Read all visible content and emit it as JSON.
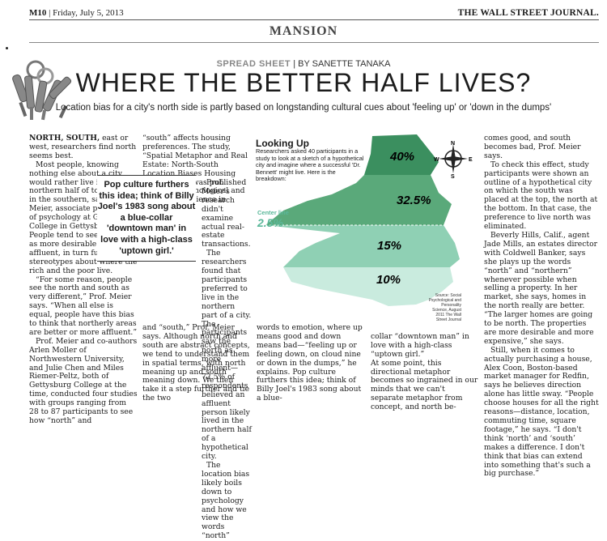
{
  "masthead": {
    "page": "M10",
    "date": "| Friday, July 5, 2013",
    "paper": "THE WALL STREET JOURNAL."
  },
  "section": "MANSION",
  "kicker": {
    "label": "SPREAD SHEET",
    "byline": "| BY SANETTE TANAKA"
  },
  "headline": "WHERE THE BETTER HALF LIVES?",
  "dek": "Location bias for a city's north side is partly based on longstanding cultural cues about 'feeling up' or 'down in the dumps'",
  "pull_quote": "Pop culture furthers this idea; think of Billy Joel's 1983 song about a blue-collar 'downtown man' in love with a high-class 'uptown girl.'",
  "columns": {
    "col1": [
      {
        "lead": "NORTH, SOUTH,",
        "text": " east or west, researchers find north seems best."
      },
      {
        "lead": "",
        "text": "Most people, knowing nothing else about a city, would rather live in the northern half of town than in the southern, says Brian Meier, associate professor of psychology at Gettysburg College in Gettysburg, Pa. People tend to see the north as more desirable and affluent, in turn fueling stereotypes about where the rich and the poor live."
      },
      {
        "lead": "",
        "text": "“For some reason, people see the north and south as very different,” Prof. Meier says. “When all else is equal, people have this bias to think that northerly areas are better or more affluent.”"
      },
      {
        "lead": "",
        "text": "Prof. Meier and co-authors Arlen Moller of Northwestern University, and Julie Chen and Miles Riemer-Peltz, both of Gettysburg College at the time, conducted four studies with groups ranging from 28 to 87 participants to see how “north” and"
      }
    ],
    "col2_top": "“south” affects housing preferences. The study, “Spatial Metaphor and Real Estate: North-South Location Biases Housing Preference,” was published in Social Psychological and Personality Science in August 2011.",
    "col2_side": [
      "Prof. Meier's research didn't examine actual real-estate transactions.",
      "The researchers found that participants preferred to live in the northern part of a city. The participants saw the north as more affluent—72.5% of respondents believed an affluent person likely lived in the northern half of a hypothetical city.",
      "The location bias likely boils down to psychology and how we view the words “north”"
    ],
    "col2_bottom": "and “south,” Prof. Meier says. Although north and south are abstract concepts, we tend to understand them in spatial terms, with north meaning up and south meaning down. We then take it a step further and tie the two",
    "col3_bottom": "words to emotion, where up means good and down means bad—“feeling up or feeling down, on cloud nine or down in the dumps,” he explains. Pop culture furthers this idea; think of Billy Joel's 1983 song about a blue-",
    "col4_bottom": "collar “downtown man” in love with a high-class “uptown girl.”\nAt some point, this directional metaphor becomes so ingrained in our minds that we can't separate metaphor from concept, and north be-",
    "col5": [
      "comes good, and south becomes bad, Prof. Meier says.",
      "To check this effect, study participants were shown an outline of a hypothetical city on which the south was placed at the top, the north at the bottom. In that case, the preference to live north was eliminated.",
      "Beverly Hills, Calif., agent Jade Mills, an estates director with Coldwell Banker, says she plays up the words “north” and “northern” whenever possible when selling a property. In her market, she says, homes in the north really are better. “The larger homes are going to be north. The properties are more desirable and more expensive,” she says.",
      "Still, when it comes to actually purchasing a house, Alex Coon, Boston-based market manager for Redfin, says he believes direction alone has little sway. “People choose houses for all the right reasons—distance, location, commuting time, square footage,” he says. “I don't think ‘north’ and ‘south’ makes a difference. I don't think that bias can extend into something that's such a big purchase.”"
    ]
  },
  "graphic": {
    "title": "Looking Up",
    "intro": "Researchers asked 40 participants in a study to look at a sketch of a hypothetical city and imagine where a successful 'Dr. Bennett' might live. Here is the breakdown:",
    "center_line_label": "Center line",
    "center_line_value": "2.5%",
    "percentages": [
      "40%",
      "32.5%",
      "15%",
      "10%"
    ],
    "source": "Source: Social Psychological and Personality Science, August 2011 The Wall Street Journal",
    "compass": {
      "n": "N",
      "s": "S",
      "e": "E",
      "w": "W"
    },
    "colors": {
      "dark": "#3b8f5f",
      "mid": "#5aa97a",
      "light": "#8fd0b4",
      "pale": "#c9ebde"
    }
  },
  "chart_data": {
    "type": "table",
    "title": "Looking Up",
    "rows": [
      {
        "zone": "top band",
        "value": 40
      },
      {
        "zone": "second band",
        "value": 32.5
      },
      {
        "zone": "Center line",
        "value": 2.5
      },
      {
        "zone": "third band",
        "value": 15
      },
      {
        "zone": "bottom band",
        "value": 10
      }
    ],
    "unit": "%"
  }
}
